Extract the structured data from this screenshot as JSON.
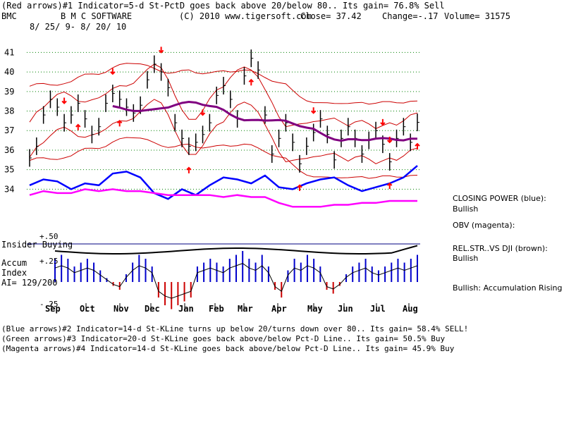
{
  "header": {
    "line1": "(Red arrows)#1 Indicator=5-d St-PctD goes back above 20/below 80.. Its gain= 76.8% Sell",
    "ticker": "BMC",
    "company": "B M C SOFTWARE",
    "site": "(C) 2010 www.tigersoft.com",
    "close": "Close=  37.42",
    "change": "Change=-.17",
    "volume": "Volume= 31575",
    "dates": "8/ 25/ 9- 8/ 20/ 10"
  },
  "side_labels": {
    "closing_power": "CLOSING POWER (blue):",
    "closing_power_state": "Bullish",
    "obv": "OBV (magenta):",
    "rel_str": "REL.STR..VS DJI (brown):",
    "rel_str_state": "Bullish",
    "accum_state": "Bullish: Accumulation Rising"
  },
  "lower_panel": {
    "insider": "Insider Buying",
    "plus50": "+.50",
    "plus25": "+.25",
    "minus25": "-.25",
    "accum": "Accum",
    "index": "Index",
    "ai": "AI= 129/200"
  },
  "footer": {
    "line1": "(Blue arrows)#2 Indicator=14-d St-KLine turns up below 20/turns down over 80.. Its gain= 58.4% SELL!",
    "line2": "(Green arrows)#3 Indicator=20-d St-KLine goes back above/below Pct-D Line.. Its gain= 50.5% Buy",
    "line3": "(Magenta arrows)#4 Indicator=14-d St-KLine goes back above/below Pct-D Line.. Its gain= 45.9% Buy"
  },
  "chart_data": {
    "type": "line",
    "price_axis": {
      "ticks": [
        "41",
        "40",
        "39",
        "38",
        "37",
        "36",
        "35",
        "34"
      ],
      "ylim": [
        33.4,
        41.7
      ]
    },
    "months": [
      "Sep",
      "Oct",
      "Nov",
      "Dec",
      "Jan",
      "Feb",
      "Mar",
      "Apr",
      "May",
      "Jun",
      "Jul",
      "Aug"
    ],
    "colors": {
      "price": "#000000",
      "bands": "#cc0000",
      "ma": "#800080",
      "closing_power": "#0000ff",
      "obv": "#ff00ff",
      "accum_pos": "#0000cc",
      "accum_neg": "#cc0000",
      "arrows": "#ff0000",
      "grid": "#008000"
    },
    "series": [
      {
        "name": "CLOSING POWER (blue)",
        "x": [
          0,
          2,
          4,
          6,
          8,
          10,
          12,
          14,
          16,
          18,
          20,
          22,
          24,
          26,
          28,
          30,
          32,
          34,
          36,
          38,
          40,
          42,
          44,
          46,
          48,
          50,
          52,
          54,
          56
        ],
        "values": [
          34.2,
          34.5,
          34.4,
          34.0,
          34.3,
          34.2,
          34.8,
          34.9,
          34.6,
          33.8,
          33.5,
          34.0,
          33.7,
          34.2,
          34.6,
          34.5,
          34.3,
          34.7,
          34.1,
          34.0,
          34.3,
          34.5,
          34.6,
          34.2,
          33.9,
          34.1,
          34.3,
          34.6,
          35.2
        ]
      },
      {
        "name": "OBV (magenta)",
        "x": [
          0,
          2,
          4,
          6,
          8,
          10,
          12,
          14,
          16,
          18,
          20,
          22,
          24,
          26,
          28,
          30,
          32,
          34,
          36,
          38,
          40,
          42,
          44,
          46,
          48,
          50,
          52,
          54,
          56
        ],
        "values": [
          33.7,
          33.9,
          33.8,
          33.8,
          34.0,
          33.9,
          34.0,
          33.9,
          33.9,
          33.8,
          33.7,
          33.7,
          33.7,
          33.7,
          33.6,
          33.7,
          33.6,
          33.6,
          33.3,
          33.1,
          33.1,
          33.1,
          33.2,
          33.2,
          33.3,
          33.3,
          33.4,
          33.4,
          33.4
        ]
      }
    ],
    "price_close": [
      35.6,
      36.2,
      37.8,
      38.6,
      38.2,
      37.4,
      37.8,
      38.4,
      37.6,
      36.8,
      37.2,
      38.4,
      38.9,
      38.6,
      38.2,
      37.9,
      38.3,
      39.6,
      40.4,
      40.0,
      39.2,
      37.4,
      36.6,
      36.2,
      36.4,
      36.8,
      37.4,
      38.8,
      39.3,
      38.6,
      37.6,
      39.8,
      40.7,
      40.1,
      37.8,
      35.8,
      36.6,
      37.4,
      36.4,
      35.3,
      36.2,
      36.9,
      37.6,
      36.8,
      35.5,
      36.6,
      37.2,
      36.6,
      35.8,
      36.5,
      37.0,
      36.3,
      35.4,
      36.6,
      37.2,
      36.4,
      37.42
    ],
    "red_arrows_down": [
      5,
      12,
      19,
      25,
      41,
      51,
      52,
      58,
      62,
      66,
      69,
      74,
      77
    ],
    "red_arrows_up": [
      7,
      13,
      23,
      32,
      39,
      52,
      56,
      60,
      61,
      73
    ],
    "accum_values": [
      0.3,
      0.35,
      0.3,
      0.2,
      0.25,
      0.3,
      0.25,
      0.15,
      0.05,
      -0.05,
      -0.1,
      0.1,
      0.25,
      0.35,
      0.3,
      0.2,
      -0.2,
      -0.3,
      -0.35,
      -0.3,
      -0.25,
      -0.2,
      0.2,
      0.25,
      0.3,
      0.25,
      0.2,
      0.3,
      0.35,
      0.4,
      0.3,
      0.25,
      0.35,
      0.2,
      -0.1,
      -0.2,
      0.15,
      0.3,
      0.25,
      0.35,
      0.3,
      0.2,
      -0.1,
      -0.15,
      -0.05,
      0.1,
      0.2,
      0.25,
      0.3,
      0.2,
      0.15,
      0.2,
      0.25,
      0.3,
      0.25,
      0.3,
      0.35
    ]
  }
}
